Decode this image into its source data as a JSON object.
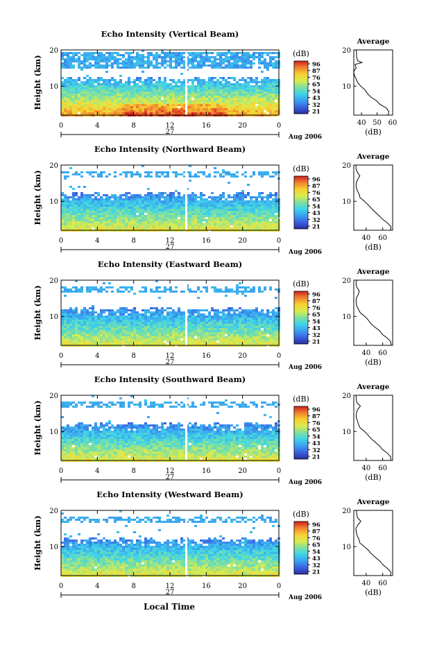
{
  "figure": {
    "xlabel": "Local Time",
    "date_label": "Aug 2006",
    "day_label": "27",
    "avg_xlabel": "(dB)",
    "colorbar_unit": "(dB)"
  },
  "chart_data": [
    {
      "type": "heatmap",
      "title": "Echo Intensity (Vertical Beam)",
      "ylabel": "Height (km)",
      "xlim": [
        0,
        24
      ],
      "ylim": [
        2,
        20
      ],
      "xticks": [
        "0",
        "4",
        "8",
        "12",
        "16",
        "20",
        "0"
      ],
      "yticks": [
        "10",
        "20"
      ],
      "colorbar_ticks": [
        "96",
        "87",
        "76",
        "65",
        "54",
        "43",
        "32",
        "21"
      ],
      "upper_layer": [
        15,
        19.5
      ],
      "avg": {
        "title": "Average",
        "xlim": [
          35,
          60
        ],
        "xticks": [
          "40",
          "50",
          "60"
        ],
        "profile": [
          [
            57,
            2
          ],
          [
            58,
            3
          ],
          [
            56,
            4
          ],
          [
            52,
            5
          ],
          [
            49,
            6
          ],
          [
            46,
            7
          ],
          [
            44,
            8
          ],
          [
            42,
            9
          ],
          [
            40,
            10
          ],
          [
            38,
            11
          ],
          [
            37,
            12
          ],
          [
            36,
            13
          ],
          [
            35,
            14
          ],
          [
            37,
            15
          ],
          [
            36,
            16
          ],
          [
            40,
            16.5
          ],
          [
            38,
            17
          ],
          [
            37,
            18
          ],
          [
            37,
            19
          ],
          [
            37,
            20
          ]
        ]
      }
    },
    {
      "type": "heatmap",
      "title": "Echo Intensity (Northward Beam)",
      "ylabel": "Height (km)",
      "xlim": [
        0,
        24
      ],
      "ylim": [
        2,
        20
      ],
      "xticks": [
        "0",
        "4",
        "8",
        "12",
        "16",
        "20",
        "0"
      ],
      "yticks": [
        "10",
        "20"
      ],
      "colorbar_ticks": [
        "96",
        "87",
        "76",
        "65",
        "54",
        "43",
        "32",
        "21"
      ],
      "upper_layer": [
        16.5,
        18
      ],
      "avg": {
        "title": "Average",
        "xlim": [
          25,
          72
        ],
        "xticks": [
          "40",
          "60"
        ],
        "profile": [
          [
            70,
            2
          ],
          [
            70,
            3
          ],
          [
            66,
            4
          ],
          [
            60,
            5
          ],
          [
            56,
            6
          ],
          [
            51,
            7
          ],
          [
            46,
            8
          ],
          [
            42,
            9
          ],
          [
            38,
            10
          ],
          [
            33,
            11
          ],
          [
            31,
            12
          ],
          [
            29,
            13
          ],
          [
            28,
            14
          ],
          [
            28,
            15
          ],
          [
            30,
            16
          ],
          [
            32,
            17
          ],
          [
            29,
            18
          ],
          [
            28,
            19
          ],
          [
            28,
            20
          ]
        ]
      }
    },
    {
      "type": "heatmap",
      "title": "Echo Intensity (Eastward Beam)",
      "ylabel": "Height (km)",
      "xlim": [
        0,
        24
      ],
      "ylim": [
        2,
        20
      ],
      "xticks": [
        "0",
        "4",
        "8",
        "12",
        "16",
        "20",
        "0"
      ],
      "yticks": [
        "10",
        "20"
      ],
      "colorbar_ticks": [
        "96",
        "87",
        "76",
        "65",
        "54",
        "43",
        "32",
        "21"
      ],
      "upper_layer": [
        16.5,
        18
      ],
      "avg": {
        "title": "Average",
        "xlim": [
          25,
          72
        ],
        "xticks": [
          "40",
          "60"
        ],
        "profile": [
          [
            70,
            2
          ],
          [
            70,
            3
          ],
          [
            66,
            4
          ],
          [
            60,
            5
          ],
          [
            56,
            6
          ],
          [
            51,
            7
          ],
          [
            46,
            8
          ],
          [
            42,
            9
          ],
          [
            38,
            10
          ],
          [
            33,
            11
          ],
          [
            31,
            12
          ],
          [
            29,
            13
          ],
          [
            28,
            14
          ],
          [
            28,
            15
          ],
          [
            30,
            16
          ],
          [
            32,
            17
          ],
          [
            29,
            18
          ],
          [
            28,
            19
          ],
          [
            28,
            20
          ]
        ]
      }
    },
    {
      "type": "heatmap",
      "title": "Echo Intensity (Southward Beam)",
      "ylabel": "Height (km)",
      "xlim": [
        0,
        24
      ],
      "ylim": [
        2,
        20
      ],
      "xticks": [
        "0",
        "4",
        "8",
        "12",
        "16",
        "20",
        "0"
      ],
      "yticks": [
        "10",
        "20"
      ],
      "colorbar_ticks": [
        "96",
        "87",
        "76",
        "65",
        "54",
        "43",
        "32",
        "21"
      ],
      "upper_layer": [
        16.5,
        18
      ],
      "avg": {
        "title": "Average",
        "xlim": [
          25,
          72
        ],
        "xticks": [
          "40",
          "60"
        ],
        "profile": [
          [
            70,
            2
          ],
          [
            70,
            3
          ],
          [
            66,
            4
          ],
          [
            60,
            5
          ],
          [
            56,
            6
          ],
          [
            51,
            7
          ],
          [
            46,
            8
          ],
          [
            42,
            9
          ],
          [
            38,
            10
          ],
          [
            33,
            11
          ],
          [
            31,
            12
          ],
          [
            29,
            13
          ],
          [
            28,
            14
          ],
          [
            28,
            15
          ],
          [
            30,
            16
          ],
          [
            33,
            17
          ],
          [
            29,
            18
          ],
          [
            28,
            19
          ],
          [
            28,
            20
          ]
        ]
      }
    },
    {
      "type": "heatmap",
      "title": "Echo Intensity (Westward Beam)",
      "ylabel": "Height (km)",
      "xlim": [
        0,
        24
      ],
      "ylim": [
        2,
        20
      ],
      "xticks": [
        "0",
        "4",
        "8",
        "12",
        "16",
        "20",
        "0"
      ],
      "yticks": [
        "10",
        "20"
      ],
      "colorbar_ticks": [
        "96",
        "87",
        "76",
        "65",
        "54",
        "43",
        "32",
        "21"
      ],
      "upper_layer": [
        16.5,
        18
      ],
      "avg": {
        "title": "Average",
        "xlim": [
          25,
          72
        ],
        "xticks": [
          "40",
          "60"
        ],
        "profile": [
          [
            70,
            2
          ],
          [
            70,
            3
          ],
          [
            66,
            4
          ],
          [
            60,
            5
          ],
          [
            56,
            6
          ],
          [
            51,
            7
          ],
          [
            46,
            8
          ],
          [
            42,
            9
          ],
          [
            38,
            10
          ],
          [
            33,
            11
          ],
          [
            31,
            12
          ],
          [
            29,
            13
          ],
          [
            28,
            14
          ],
          [
            28,
            15
          ],
          [
            30,
            16
          ],
          [
            33,
            17
          ],
          [
            29,
            18
          ],
          [
            28,
            19
          ],
          [
            28,
            20
          ]
        ]
      }
    }
  ]
}
